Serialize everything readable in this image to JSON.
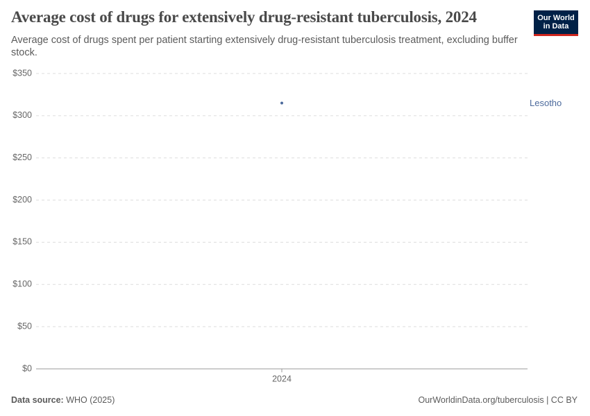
{
  "chart_data": {
    "type": "line",
    "title": "Average cost of drugs for extensively drug-resistant tuberculosis, 2024",
    "subtitle": "Average cost of drugs spent per patient starting extensively drug-resistant tuberculosis treatment, excluding buffer stock.",
    "categories": [
      "2024"
    ],
    "series": [
      {
        "name": "Lesotho",
        "color": "#4c6a9c",
        "values": [
          315
        ]
      }
    ],
    "ylim": [
      0,
      350
    ],
    "yticks": [
      {
        "value": 0,
        "label": "$0"
      },
      {
        "value": 50,
        "label": "$50"
      },
      {
        "value": 100,
        "label": "$100"
      },
      {
        "value": 150,
        "label": "$150"
      },
      {
        "value": 200,
        "label": "$200"
      },
      {
        "value": 250,
        "label": "$250"
      },
      {
        "value": 300,
        "label": "$300"
      },
      {
        "value": 350,
        "label": "$350"
      }
    ],
    "grid": true,
    "source_label": "Data source:",
    "source": "WHO (2025)",
    "credit": "OurWorldinData.org/tuberculosis | CC BY",
    "logo": [
      "Our World",
      "in Data"
    ]
  }
}
